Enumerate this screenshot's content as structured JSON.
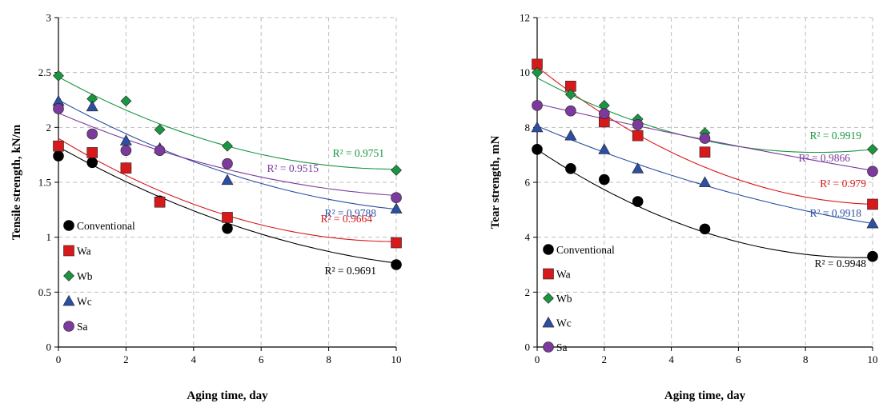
{
  "chart_data": [
    {
      "type": "scatter",
      "xlabel": "Aging time, day",
      "ylabel": "Tensile strength, kN/m",
      "xlim": [
        0,
        10
      ],
      "ylim": [
        0,
        3
      ],
      "xticks": [
        "0",
        "2",
        "4",
        "6",
        "8",
        "10"
      ],
      "yticks": [
        "0",
        "0.5",
        "1",
        "1.5",
        "2",
        "2.5",
        "3"
      ],
      "grid": true,
      "legend_position": "bottom-left",
      "x": [
        0,
        1,
        2,
        3,
        5,
        10
      ],
      "series": [
        {
          "name": "Conventional",
          "color": "#000000",
          "marker": "circle",
          "values": [
            1.74,
            1.68,
            1.63,
            1.33,
            1.08,
            0.75
          ],
          "trend_coeffs": [
            1.823,
            -0.1719,
            0.0066
          ],
          "r2": "R² = 0.9691"
        },
        {
          "name": "Wa",
          "color": "#d7191c",
          "marker": "square",
          "values": [
            1.83,
            1.77,
            1.63,
            1.32,
            1.18,
            0.95
          ],
          "trend_coeffs": [
            1.9,
            -0.187,
            0.0093
          ],
          "r2": "R² = 0.9664"
        },
        {
          "name": "Wb",
          "color": "#1a9641",
          "marker": "diamond",
          "values": [
            2.47,
            2.26,
            2.24,
            1.98,
            1.83,
            1.61
          ],
          "trend_coeffs": [
            2.46,
            -0.168,
            0.0084
          ],
          "r2": "R² = 0.9751"
        },
        {
          "name": "Wc",
          "color": "#2c4fa3",
          "marker": "triangle",
          "values": [
            2.24,
            2.19,
            1.88,
            1.81,
            1.52,
            1.26
          ],
          "trend_coeffs": [
            2.25,
            -0.1675,
            0.0068
          ],
          "r2": "R² = 0.9788"
        },
        {
          "name": "Sa",
          "color": "#7b3a9c",
          "marker": "circle",
          "values": [
            2.17,
            1.94,
            1.79,
            1.79,
            1.67,
            1.36
          ],
          "trend_coeffs": [
            2.13,
            -0.13,
            0.0055
          ],
          "r2": "R² = 0.9515"
        }
      ]
    },
    {
      "type": "scatter",
      "xlabel": "Aging time, day",
      "ylabel": "Tear strength, mN",
      "xlim": [
        0,
        10
      ],
      "ylim": [
        0,
        12
      ],
      "xticks": [
        "0",
        "2",
        "4",
        "6",
        "8",
        "10"
      ],
      "yticks": [
        "0",
        "2",
        "4",
        "6",
        "8",
        "10",
        "12"
      ],
      "grid": true,
      "legend_position": "bottom-left",
      "x": [
        0,
        1,
        2,
        3,
        5,
        10
      ],
      "series": [
        {
          "name": "Conventional",
          "color": "#000000",
          "marker": "circle",
          "values": [
            7.2,
            6.5,
            6.1,
            5.3,
            4.3,
            3.3
          ],
          "trend_coeffs": [
            7.19,
            -0.812,
            0.0419
          ],
          "r2": "R² = 0.9948"
        },
        {
          "name": "Wa",
          "color": "#d7191c",
          "marker": "square",
          "values": [
            10.3,
            9.5,
            8.2,
            7.7,
            7.1,
            5.2
          ],
          "trend_coeffs": [
            10.2,
            -0.96,
            0.046
          ],
          "r2": "R² = 0.979"
        },
        {
          "name": "Wb",
          "color": "#1a9641",
          "marker": "diamond",
          "values": [
            10.0,
            9.2,
            8.8,
            8.3,
            7.8,
            7.2
          ],
          "trend_coeffs": [
            9.8,
            -0.65,
            0.039
          ],
          "r2": "R² = 0.9919"
        },
        {
          "name": "Wc",
          "color": "#2c4fa3",
          "marker": "triangle",
          "values": [
            8.0,
            7.7,
            7.2,
            6.5,
            6.0,
            4.5
          ],
          "trend_coeffs": [
            8.05,
            -0.51,
            0.0155
          ],
          "r2": "R² = 0.9918"
        },
        {
          "name": "Sa",
          "color": "#7b3a9c",
          "marker": "circle",
          "values": [
            8.8,
            8.6,
            8.5,
            8.1,
            7.6,
            6.4
          ],
          "trend_coeffs": [
            8.86,
            -0.28,
            0.0037
          ],
          "r2": "R² = 0.9866"
        }
      ]
    }
  ]
}
